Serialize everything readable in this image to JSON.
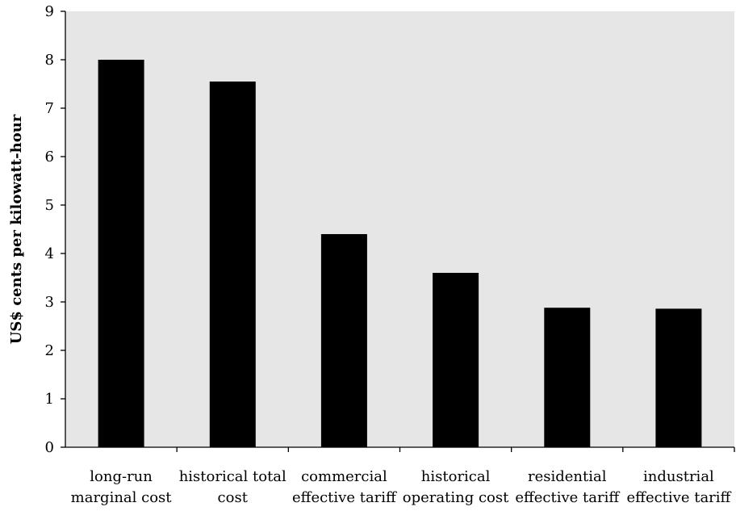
{
  "chart_data": {
    "type": "bar",
    "title": "",
    "xlabel": "",
    "ylabel": "US$ cents per kilowatt-hour",
    "ylim": [
      0,
      9
    ],
    "yticks": [
      "0",
      "1",
      "2",
      "3",
      "4",
      "5",
      "6",
      "7",
      "8",
      "9"
    ],
    "grid": false,
    "legend": "none",
    "categories": [
      [
        "long-run",
        "marginal cost"
      ],
      [
        "historical total",
        "cost"
      ],
      [
        "commercial",
        "effective tariff"
      ],
      [
        "historical",
        "operating cost"
      ],
      [
        "residential",
        "effective tariff"
      ],
      [
        "industrial",
        "effective tariff"
      ]
    ],
    "values": [
      8.0,
      7.55,
      4.4,
      3.6,
      2.88,
      2.86
    ],
    "colors": {
      "bar": "#000000",
      "plot_background": "#e6e6e6",
      "axis": "#000000"
    }
  }
}
